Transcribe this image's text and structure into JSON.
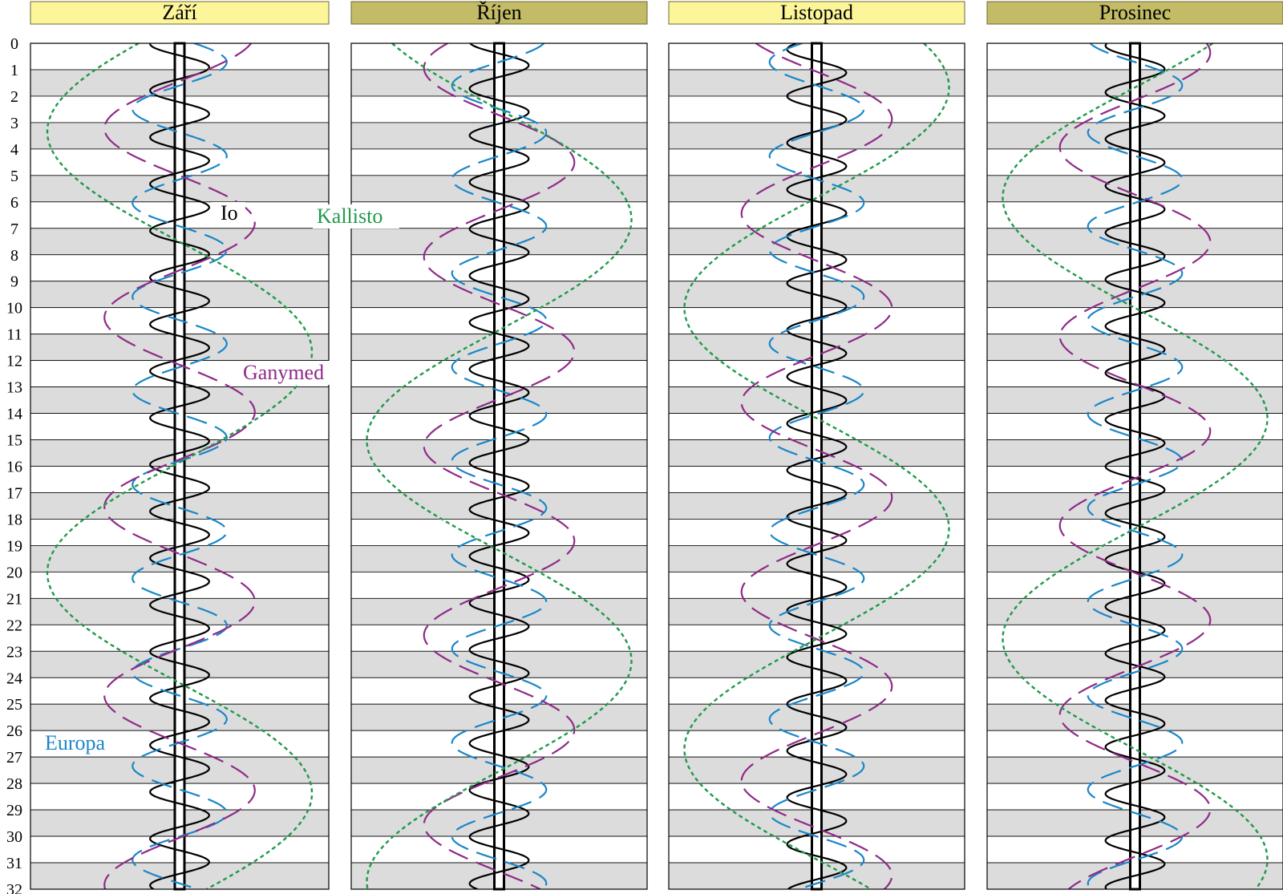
{
  "chart_data": {
    "type": "line",
    "title": "",
    "xlabel": "",
    "ylabel": "",
    "y_ticks": [
      "0",
      "1",
      "2",
      "3",
      "4",
      "5",
      "6",
      "7",
      "8",
      "9",
      "10",
      "11",
      "12",
      "13",
      "14",
      "15",
      "16",
      "17",
      "18",
      "19",
      "20",
      "21",
      "22",
      "23",
      "24",
      "25",
      "26",
      "27",
      "28",
      "29",
      "30",
      "31",
      "32"
    ],
    "ylim": [
      0,
      32
    ],
    "grid": "alternating shaded day bands",
    "months": [
      {
        "name": "Září",
        "header_color": "#fdf59a"
      },
      {
        "name": "Říjen",
        "header_color": "#c4bb66"
      },
      {
        "name": "Listopad",
        "header_color": "#fdf59a"
      },
      {
        "name": "Prosinec",
        "header_color": "#c4bb66"
      }
    ],
    "series": [
      {
        "name": "Io",
        "color": "#000000",
        "dash": "solid",
        "period_days": 1.769,
        "amplitude_jupiter_radii": 5.9,
        "phase": [
          0.74,
          0.78,
          0.62,
          0.7
        ]
      },
      {
        "name": "Europa",
        "color": "#1a86c8",
        "dash": "long",
        "period_days": 3.551,
        "amplitude_jupiter_radii": 9.4,
        "phase": [
          0.05,
          0.3,
          0.55,
          0.8
        ]
      },
      {
        "name": "Ganymed",
        "color": "#8f2a88",
        "dash": "long",
        "period_days": 7.155,
        "amplitude_jupiter_radii": 15.0,
        "phase": [
          0.3,
          0.62,
          0.85,
          0.2
        ]
      },
      {
        "name": "Kallisto",
        "color": "#1f9a4a",
        "dash": "short",
        "period_days": 16.689,
        "amplitude_jupiter_radii": 26.4,
        "phase": [
          0.55,
          0.85,
          0.15,
          0.4
        ]
      }
    ],
    "label_positions_note": "labels drawn once in first panel / gaps"
  },
  "labels": {
    "io": "Io",
    "kallisto": "Kallisto",
    "ganymed": "Ganymed",
    "europa": "Europa"
  }
}
